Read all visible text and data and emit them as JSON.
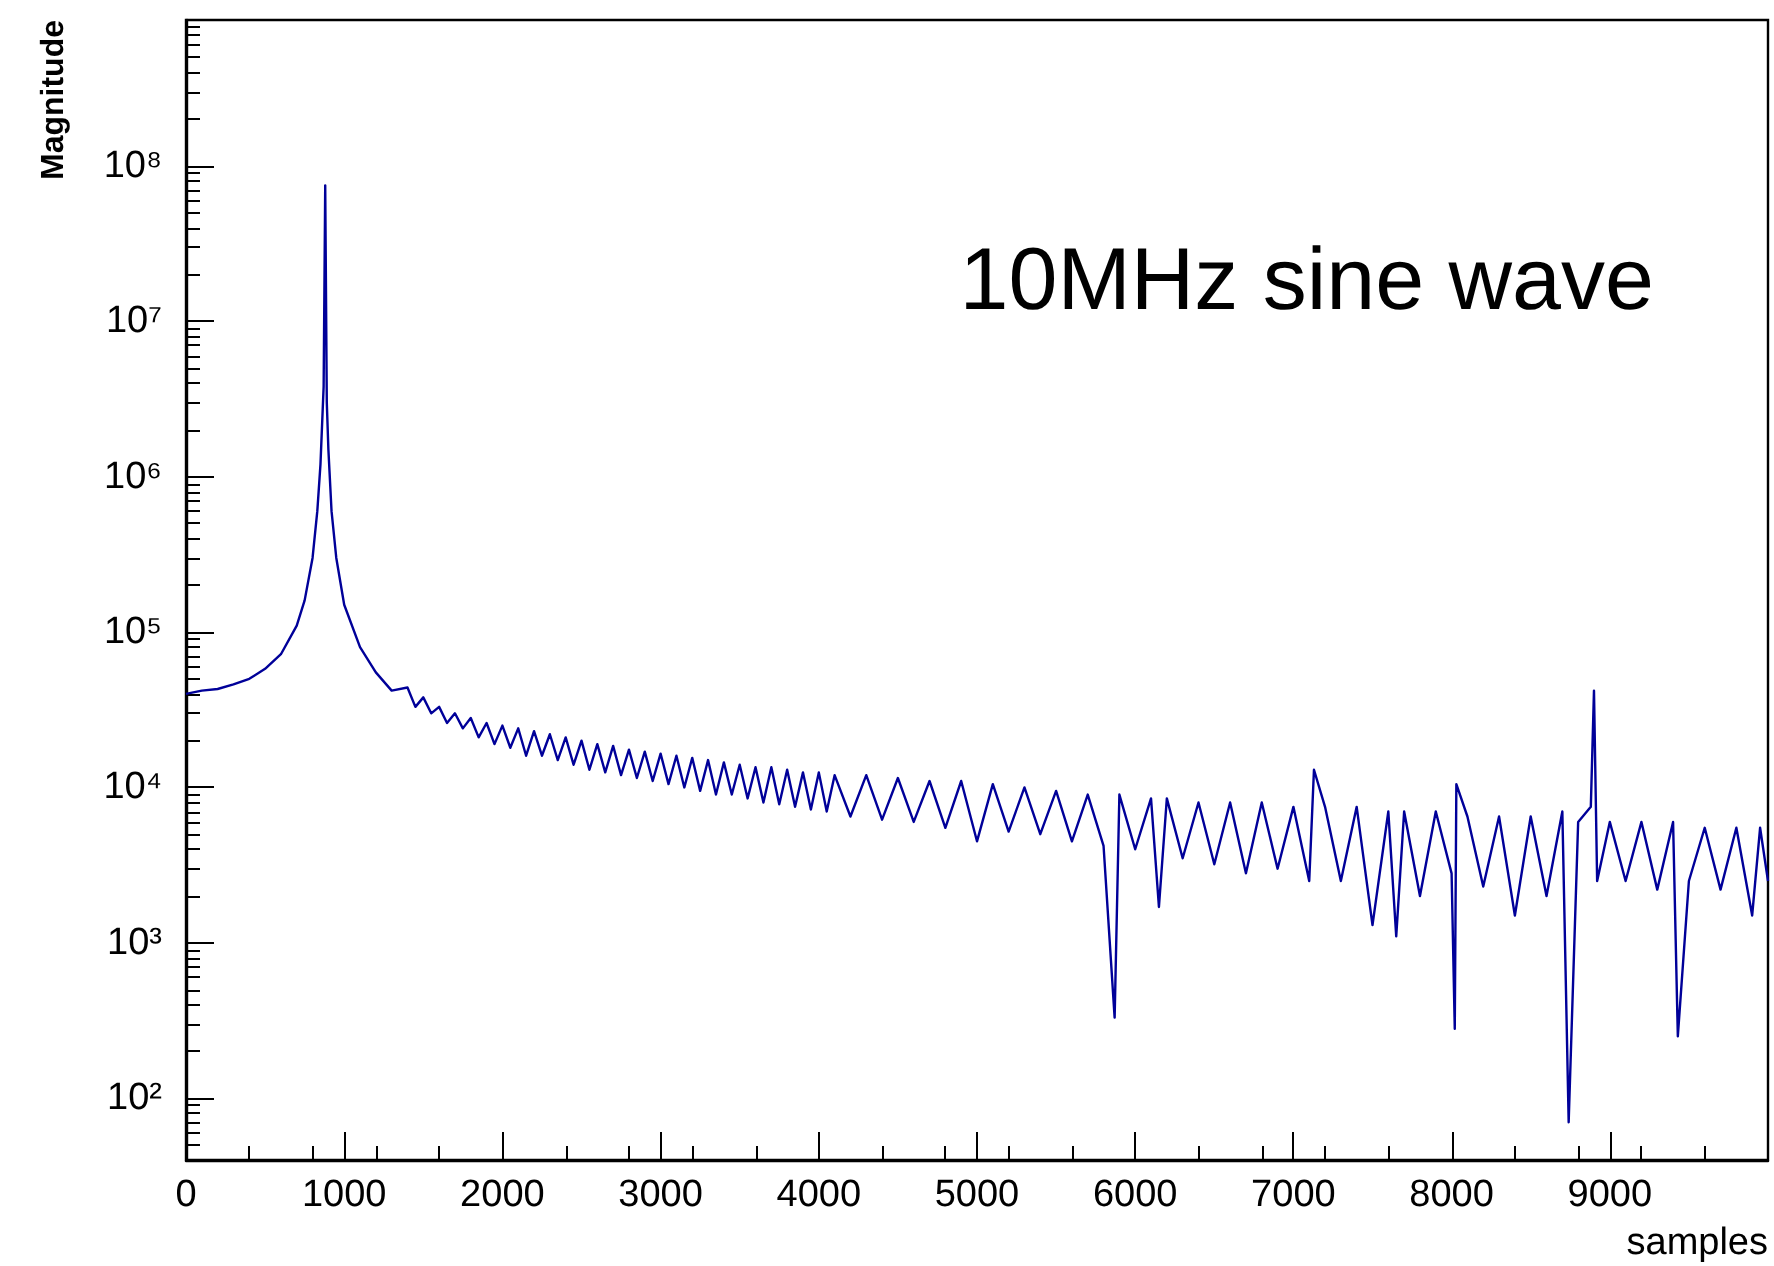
{
  "chart_data": {
    "type": "line",
    "annotations": [
      "10MHz sine wave"
    ],
    "xlabel": "samples",
    "ylabel": "Magnitude",
    "xlim": [
      0,
      10000
    ],
    "xticks": [
      0,
      1000,
      2000,
      3000,
      4000,
      5000,
      6000,
      7000,
      8000,
      9000
    ],
    "ylim": [
      40,
      870000000
    ],
    "log": "y",
    "yticks": [
      {
        "value": 100,
        "label": "10²"
      },
      {
        "value": 1000,
        "label": "10³"
      },
      {
        "value": 10000,
        "label": "10⁴"
      },
      {
        "value": 100000,
        "label": "10⁵"
      },
      {
        "value": 1000000,
        "label": "10⁶"
      },
      {
        "value": 10000000,
        "label": "10⁷"
      },
      {
        "value": 100000000,
        "label": "10⁸"
      }
    ],
    "grid": false,
    "marker": "none",
    "line_style": "solid",
    "series": [
      {
        "color": "#000099",
        "x": [
          0,
          100,
          200,
          300,
          400,
          500,
          600,
          700,
          750,
          800,
          830,
          850,
          870,
          880,
          890,
          900,
          920,
          950,
          1000,
          1100,
          1200,
          1300,
          1400,
          1450,
          1500,
          1550,
          1600,
          1650,
          1700,
          1750,
          1800,
          1850,
          1900,
          1950,
          2000,
          2050,
          2100,
          2150,
          2200,
          2250,
          2300,
          2350,
          2400,
          2450,
          2500,
          2550,
          2600,
          2650,
          2700,
          2750,
          2800,
          2850,
          2900,
          2950,
          3000,
          3050,
          3100,
          3150,
          3200,
          3250,
          3300,
          3350,
          3400,
          3450,
          3500,
          3550,
          3600,
          3650,
          3700,
          3750,
          3800,
          3850,
          3900,
          3950,
          4000,
          4050,
          4100,
          4200,
          4300,
          4400,
          4500,
          4600,
          4700,
          4800,
          4900,
          5000,
          5100,
          5200,
          5300,
          5400,
          5500,
          5600,
          5700,
          5800,
          5870,
          5900,
          6000,
          6100,
          6150,
          6200,
          6300,
          6400,
          6500,
          6600,
          6700,
          6800,
          6900,
          7000,
          7100,
          7130,
          7200,
          7300,
          7400,
          7500,
          7600,
          7650,
          7700,
          7800,
          7900,
          8000,
          8020,
          8030,
          8100,
          8200,
          8300,
          8400,
          8500,
          8600,
          8700,
          8740,
          8800,
          8880,
          8900,
          8920,
          9000,
          9100,
          9200,
          9300,
          9400,
          9430,
          9500,
          9600,
          9700,
          9800,
          9900,
          9950,
          10000
        ],
        "values": [
          40000,
          42000,
          43000,
          46000,
          50000,
          58000,
          72000,
          110000,
          160000,
          300000,
          600000,
          1200000,
          3800000,
          75000000,
          3000000,
          1500000,
          600000,
          300000,
          150000,
          80000,
          55000,
          42000,
          44000,
          33000,
          38000,
          30000,
          33000,
          26000,
          30000,
          24000,
          28000,
          21000,
          26000,
          19000,
          25000,
          18000,
          24000,
          16000,
          23000,
          16000,
          22000,
          15000,
          21000,
          14000,
          20000,
          13000,
          19000,
          12500,
          18500,
          12000,
          17500,
          11500,
          17000,
          11000,
          16500,
          10500,
          16000,
          10000,
          15500,
          9500,
          15000,
          9000,
          14500,
          9000,
          14000,
          8500,
          13500,
          8000,
          13500,
          7800,
          13000,
          7500,
          12500,
          7200,
          12500,
          7000,
          12000,
          6500,
          12000,
          6200,
          11500,
          6000,
          11000,
          5500,
          11000,
          4500,
          10500,
          5200,
          10000,
          5000,
          9500,
          4500,
          9000,
          4200,
          330,
          9000,
          4000,
          8500,
          1700,
          8500,
          3500,
          8000,
          3200,
          8000,
          2800,
          8000,
          3000,
          7500,
          2500,
          13000,
          7500,
          2500,
          7500,
          1300,
          7000,
          1100,
          7000,
          2000,
          7000,
          2800,
          280,
          10500,
          6500,
          2300,
          6500,
          1500,
          6500,
          2000,
          7000,
          70,
          6000,
          7500,
          42000,
          2500,
          6000,
          2500,
          6000,
          2200,
          6000,
          250,
          2500,
          5500,
          2200,
          5500,
          1500,
          5500,
          2500
        ]
      }
    ]
  }
}
